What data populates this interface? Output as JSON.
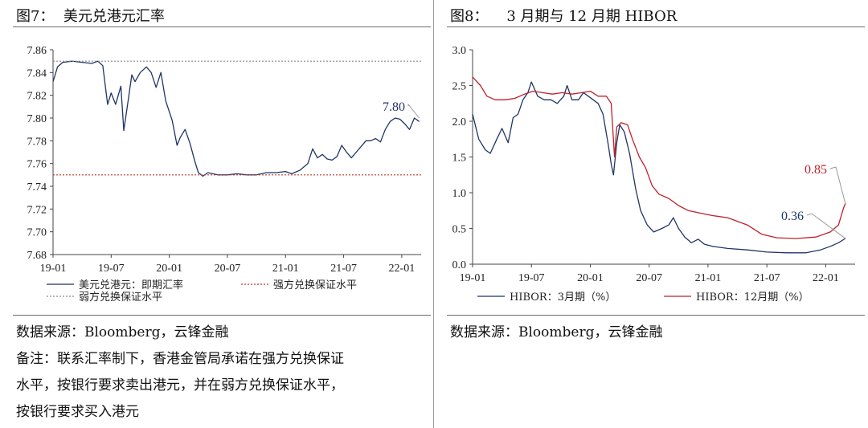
{
  "left": {
    "title": "图7：  美元兑港元汇率",
    "source": "数据来源：Bloomberg，云锋金融",
    "note_lines": [
      "备注：联系汇率制下，香港金管局承诺在强方兑换保证",
      "水平，按银行要求卖出港元，并在弱方兑换保证水平，",
      "按银行要求买入港元"
    ]
  },
  "right": {
    "title": "图8：    3 月期与 12 月期 HIBOR",
    "source": "数据来源：Bloomberg，云锋金融"
  },
  "chart_data": [
    {
      "type": "line",
      "x_ticks": [
        "19-01",
        "19-07",
        "20-01",
        "20-07",
        "21-01",
        "21-07",
        "22-01"
      ],
      "ylim": [
        7.68,
        7.86
      ],
      "y_ticks": [
        "7.68",
        "7.70",
        "7.72",
        "7.74",
        "7.76",
        "7.78",
        "7.80",
        "7.82",
        "7.84",
        "7.86"
      ],
      "grid": false,
      "legend_position": "bottom",
      "series": [
        {
          "name": "美元兑港元：即期汇率",
          "color": "#1f3565",
          "style": "solid",
          "points": [
            [
              "2019-01-01",
              7.832
            ],
            [
              "2019-01-15",
              7.845
            ],
            [
              "2019-02-01",
              7.849
            ],
            [
              "2019-03-01",
              7.85
            ],
            [
              "2019-04-01",
              7.849
            ],
            [
              "2019-05-01",
              7.848
            ],
            [
              "2019-05-20",
              7.85
            ],
            [
              "2019-06-05",
              7.846
            ],
            [
              "2019-06-20",
              7.812
            ],
            [
              "2019-07-01",
              7.822
            ],
            [
              "2019-07-15",
              7.812
            ],
            [
              "2019-08-01",
              7.828
            ],
            [
              "2019-08-10",
              7.789
            ],
            [
              "2019-08-25",
              7.818
            ],
            [
              "2019-09-05",
              7.838
            ],
            [
              "2019-09-15",
              7.832
            ],
            [
              "2019-10-01",
              7.84
            ],
            [
              "2019-10-20",
              7.845
            ],
            [
              "2019-11-05",
              7.84
            ],
            [
              "2019-11-20",
              7.827
            ],
            [
              "2019-12-05",
              7.84
            ],
            [
              "2019-12-20",
              7.815
            ],
            [
              "2020-01-10",
              7.798
            ],
            [
              "2020-01-25",
              7.776
            ],
            [
              "2020-02-05",
              7.783
            ],
            [
              "2020-02-20",
              7.79
            ],
            [
              "2020-03-05",
              7.778
            ],
            [
              "2020-03-20",
              7.762
            ],
            [
              "2020-04-01",
              7.752
            ],
            [
              "2020-04-15",
              7.749
            ],
            [
              "2020-05-01",
              7.752
            ],
            [
              "2020-06-01",
              7.75
            ],
            [
              "2020-07-01",
              7.75
            ],
            [
              "2020-08-01",
              7.751
            ],
            [
              "2020-09-01",
              7.75
            ],
            [
              "2020-10-01",
              7.75
            ],
            [
              "2020-11-01",
              7.752
            ],
            [
              "2020-12-01",
              7.752
            ],
            [
              "2021-01-01",
              7.753
            ],
            [
              "2021-01-20",
              7.751
            ],
            [
              "2021-02-15",
              7.754
            ],
            [
              "2021-03-10",
              7.76
            ],
            [
              "2021-03-25",
              7.773
            ],
            [
              "2021-04-10",
              7.765
            ],
            [
              "2021-04-25",
              7.768
            ],
            [
              "2021-05-10",
              7.764
            ],
            [
              "2021-05-25",
              7.763
            ],
            [
              "2021-06-10",
              7.766
            ],
            [
              "2021-06-25",
              7.776
            ],
            [
              "2021-07-10",
              7.77
            ],
            [
              "2021-07-25",
              7.765
            ],
            [
              "2021-08-10",
              7.77
            ],
            [
              "2021-08-25",
              7.775
            ],
            [
              "2021-09-10",
              7.78
            ],
            [
              "2021-09-25",
              7.78
            ],
            [
              "2021-10-10",
              7.782
            ],
            [
              "2021-10-25",
              7.779
            ],
            [
              "2021-11-10",
              7.79
            ],
            [
              "2021-11-25",
              7.797
            ],
            [
              "2021-12-10",
              7.8
            ],
            [
              "2021-12-25",
              7.799
            ],
            [
              "2022-01-10",
              7.795
            ],
            [
              "2022-01-25",
              7.79
            ],
            [
              "2022-02-10",
              7.8
            ],
            [
              "2022-02-25",
              7.797
            ]
          ]
        },
        {
          "name": "强方兑换保证水平",
          "color": "#c0392b",
          "style": "dashed",
          "value": 7.75
        },
        {
          "name": "弱方兑换保证水平",
          "color": "#8a8a8a",
          "style": "dashed",
          "value": 7.85
        }
      ],
      "annotations": [
        {
          "text": "7.80",
          "x": "2022-02-25",
          "y": 7.8,
          "color": "#1f3565"
        }
      ]
    },
    {
      "type": "line",
      "x_ticks": [
        "19-01",
        "19-07",
        "20-01",
        "20-07",
        "21-01",
        "21-07",
        "22-01"
      ],
      "ylim": [
        0.0,
        3.0
      ],
      "y_ticks": [
        "0.0",
        "0.5",
        "1.0",
        "1.5",
        "2.0",
        "2.5",
        "3.0"
      ],
      "grid": false,
      "legend_position": "bottom",
      "series": [
        {
          "name": "HIBOR：3月期（%）",
          "color": "#1f3565",
          "points": [
            [
              "2019-01-01",
              2.1
            ],
            [
              "2019-01-20",
              1.75
            ],
            [
              "2019-02-10",
              1.6
            ],
            [
              "2019-02-25",
              1.55
            ],
            [
              "2019-03-15",
              1.75
            ],
            [
              "2019-04-01",
              1.9
            ],
            [
              "2019-04-20",
              1.7
            ],
            [
              "2019-05-05",
              2.05
            ],
            [
              "2019-05-20",
              2.1
            ],
            [
              "2019-06-05",
              2.3
            ],
            [
              "2019-06-20",
              2.4
            ],
            [
              "2019-07-01",
              2.55
            ],
            [
              "2019-07-20",
              2.35
            ],
            [
              "2019-08-10",
              2.3
            ],
            [
              "2019-09-01",
              2.3
            ],
            [
              "2019-09-20",
              2.25
            ],
            [
              "2019-10-10",
              2.35
            ],
            [
              "2019-10-20",
              2.5
            ],
            [
              "2019-11-05",
              2.3
            ],
            [
              "2019-11-25",
              2.3
            ],
            [
              "2019-12-10",
              2.4
            ],
            [
              "2019-12-25",
              2.35
            ],
            [
              "2020-01-10",
              2.3
            ],
            [
              "2020-01-25",
              2.25
            ],
            [
              "2020-02-10",
              2.1
            ],
            [
              "2020-02-25",
              1.7
            ],
            [
              "2020-03-05",
              1.4
            ],
            [
              "2020-03-12",
              1.25
            ],
            [
              "2020-03-22",
              1.7
            ],
            [
              "2020-04-01",
              1.95
            ],
            [
              "2020-04-15",
              1.85
            ],
            [
              "2020-05-01",
              1.55
            ],
            [
              "2020-05-20",
              1.05
            ],
            [
              "2020-06-05",
              0.75
            ],
            [
              "2020-06-25",
              0.55
            ],
            [
              "2020-07-15",
              0.45
            ],
            [
              "2020-08-10",
              0.5
            ],
            [
              "2020-09-01",
              0.55
            ],
            [
              "2020-09-15",
              0.65
            ],
            [
              "2020-10-01",
              0.5
            ],
            [
              "2020-10-20",
              0.38
            ],
            [
              "2020-11-10",
              0.3
            ],
            [
              "2020-12-01",
              0.35
            ],
            [
              "2020-12-20",
              0.28
            ],
            [
              "2021-01-15",
              0.25
            ],
            [
              "2021-03-01",
              0.22
            ],
            [
              "2021-05-01",
              0.2
            ],
            [
              "2021-07-01",
              0.17
            ],
            [
              "2021-09-01",
              0.16
            ],
            [
              "2021-11-01",
              0.16
            ],
            [
              "2021-12-15",
              0.2
            ],
            [
              "2022-01-15",
              0.25
            ],
            [
              "2022-02-10",
              0.3
            ],
            [
              "2022-03-01",
              0.36
            ]
          ]
        },
        {
          "name": "HIBOR：12月期（%）",
          "color": "#c0202a",
          "points": [
            [
              "2019-01-01",
              2.62
            ],
            [
              "2019-01-25",
              2.5
            ],
            [
              "2019-02-15",
              2.35
            ],
            [
              "2019-03-10",
              2.3
            ],
            [
              "2019-04-10",
              2.3
            ],
            [
              "2019-05-10",
              2.32
            ],
            [
              "2019-06-10",
              2.38
            ],
            [
              "2019-07-05",
              2.42
            ],
            [
              "2019-08-05",
              2.4
            ],
            [
              "2019-09-05",
              2.38
            ],
            [
              "2019-10-05",
              2.4
            ],
            [
              "2019-11-05",
              2.38
            ],
            [
              "2019-12-05",
              2.4
            ],
            [
              "2020-01-01",
              2.42
            ],
            [
              "2020-01-25",
              2.35
            ],
            [
              "2020-02-20",
              2.35
            ],
            [
              "2020-03-05",
              2.25
            ],
            [
              "2020-03-15",
              1.5
            ],
            [
              "2020-03-22",
              1.92
            ],
            [
              "2020-04-05",
              1.98
            ],
            [
              "2020-04-25",
              1.95
            ],
            [
              "2020-05-10",
              1.75
            ],
            [
              "2020-06-01",
              1.5
            ],
            [
              "2020-06-20",
              1.35
            ],
            [
              "2020-07-10",
              1.1
            ],
            [
              "2020-08-01",
              0.98
            ],
            [
              "2020-09-01",
              0.92
            ],
            [
              "2020-10-01",
              0.82
            ],
            [
              "2020-11-01",
              0.75
            ],
            [
              "2020-12-01",
              0.72
            ],
            [
              "2021-01-15",
              0.68
            ],
            [
              "2021-03-01",
              0.65
            ],
            [
              "2021-05-01",
              0.55
            ],
            [
              "2021-06-15",
              0.42
            ],
            [
              "2021-08-01",
              0.37
            ],
            [
              "2021-10-01",
              0.36
            ],
            [
              "2021-12-01",
              0.38
            ],
            [
              "2022-01-15",
              0.45
            ],
            [
              "2022-02-10",
              0.55
            ],
            [
              "2022-02-25",
              0.78
            ],
            [
              "2022-03-01",
              0.85
            ]
          ]
        }
      ],
      "annotations": [
        {
          "text": "0.85",
          "x": "2022-03-01",
          "y": 0.85,
          "color": "#c0202a"
        },
        {
          "text": "0.36",
          "x": "2022-03-01",
          "y": 0.36,
          "color": "#1f3565"
        }
      ]
    }
  ]
}
